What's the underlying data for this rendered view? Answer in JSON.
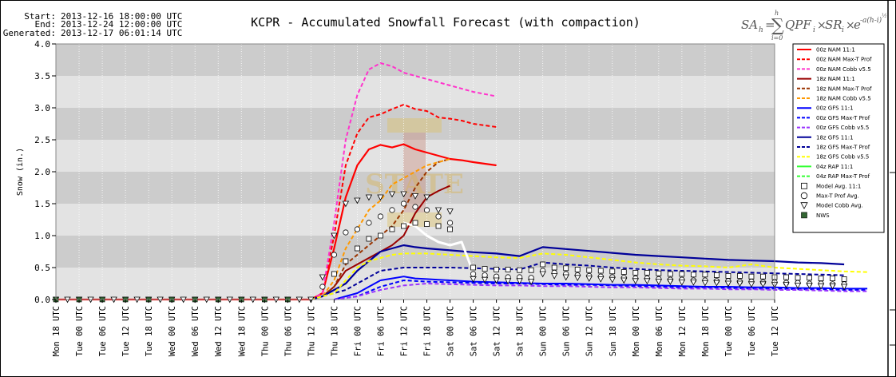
{
  "header": {
    "start_label": "Start:",
    "start_value": "2013-12-16 18:00:00 UTC",
    "end_label": "End:",
    "end_value": "2013-12-24 12:00:00 UTC",
    "generated_label": "Generated:",
    "generated_value": "2013-12-17 06:01:14 UTC",
    "title": "KCPR - Accumulated Snowfall Forecast (with compaction)",
    "formula": {
      "lhs": "SA",
      "lhs_sub": "h",
      "eq": "=",
      "sum_upper": "h",
      "sum_lower": "i=0",
      "body": "QPF",
      "body_sub": "i",
      "times1": "×",
      "sr": "SR",
      "sr_sub": "i",
      "times2": "×",
      "exp_base": "e",
      "exp": "-a(h-i)",
      "exp_sup": "½"
    }
  },
  "watermark": {
    "text": "STATE"
  },
  "colors": {
    "plot_dark": "#cccccc",
    "plot_light": "#e3e3e3",
    "grid": "#ffffff",
    "nam00": "#ff0000",
    "nam00_cobb": "#ff33cc",
    "nam18": "#990000",
    "nam18_maxt": "#993300",
    "nam18_cobb": "#ff9900",
    "gfs00": "#0000ff",
    "gfs00_cobb": "#9933ff",
    "gfs18": "#000099",
    "gfs18_cobb": "#ffff00",
    "rap04": "#33ff33",
    "nws": "#336633"
  },
  "chart_data": {
    "type": "line",
    "ylabel": "Snow (in.)",
    "ylim": [
      0,
      4.0
    ],
    "yticks": [
      "0.0",
      "0.5",
      "1.0",
      "1.5",
      "2.0",
      "2.5",
      "3.0",
      "3.5",
      "4.0"
    ],
    "x_tick_labels": [
      "Mon 18 UTC",
      "Tue 00 UTC",
      "Tue 06 UTC",
      "Tue 12 UTC",
      "Tue 18 UTC",
      "Wed 00 UTC",
      "Wed 06 UTC",
      "Wed 12 UTC",
      "Wed 18 UTC",
      "Thu 00 UTC",
      "Thu 06 UTC",
      "Thu 12 UTC",
      "Thu 18 UTC",
      "Fri 00 UTC",
      "Fri 06 UTC",
      "Fri 12 UTC",
      "Fri 18 UTC",
      "Sat 00 UTC",
      "Sat 06 UTC",
      "Sat 12 UTC",
      "Sat 18 UTC",
      "Sun 00 UTC",
      "Sun 06 UTC",
      "Sun 12 UTC",
      "Sun 18 UTC",
      "Mon 00 UTC",
      "Mon 06 UTC",
      "Mon 12 UTC",
      "Mon 18 UTC",
      "Tue 00 UTC",
      "Tue 06 UTC",
      "Tue 12 UTC"
    ],
    "x_unit": "hours from Mon 18 UTC",
    "legend_position": "right",
    "legend": [
      {
        "name": "00z NAM 11:1",
        "color": "#ff0000",
        "style": "solid"
      },
      {
        "name": "00z NAM Max-T Prof",
        "color": "#ff0000",
        "style": "dash"
      },
      {
        "name": "00z NAM Cobb v5.5",
        "color": "#ff33cc",
        "style": "dash"
      },
      {
        "name": "18z NAM 11:1",
        "color": "#990000",
        "style": "solid"
      },
      {
        "name": "18z NAM Max-T Prof",
        "color": "#993300",
        "style": "dash"
      },
      {
        "name": "18z NAM Cobb v5.5",
        "color": "#ff9900",
        "style": "dash"
      },
      {
        "name": "00z GFS 11:1",
        "color": "#0000ff",
        "style": "solid"
      },
      {
        "name": "00z GFS Max-T Prof",
        "color": "#0000ff",
        "style": "dash"
      },
      {
        "name": "00z GFS Cobb v5.5",
        "color": "#9933ff",
        "style": "dash"
      },
      {
        "name": "18z GFS 11:1",
        "color": "#000099",
        "style": "solid"
      },
      {
        "name": "18z GFS Max-T Prof",
        "color": "#000099",
        "style": "dash"
      },
      {
        "name": "18z GFS Cobb v5.5",
        "color": "#ffff00",
        "style": "dash"
      },
      {
        "name": "04z RAP 11:1",
        "color": "#33ff33",
        "style": "solid"
      },
      {
        "name": "04z RAP Max-T Prof",
        "color": "#33ff33",
        "style": "dash"
      },
      {
        "name": "Model Avg. 11:1",
        "color": "#000000",
        "marker": "square"
      },
      {
        "name": "Max-T Prof Avg.",
        "color": "#000000",
        "marker": "circle"
      },
      {
        "name": "Model Cobb Avg.",
        "color": "#000000",
        "marker": "triangle"
      },
      {
        "name": "NWS",
        "color": "#336633",
        "marker": "filled-square"
      }
    ],
    "series": [
      {
        "name": "00z NAM 11:1",
        "color": "#ff0000",
        "dash": "",
        "width": 2.2,
        "x": [
          0,
          6,
          12,
          18,
          24,
          30,
          36,
          42,
          48,
          54,
          60,
          66,
          69,
          72,
          75,
          78,
          81,
          84,
          87,
          90,
          93,
          96,
          99,
          102,
          105,
          108,
          114
        ],
        "y": [
          0,
          0,
          0,
          0,
          0,
          0,
          0,
          0,
          0,
          0,
          0,
          0,
          0.1,
          0.8,
          1.6,
          2.1,
          2.35,
          2.42,
          2.38,
          2.43,
          2.35,
          2.3,
          2.25,
          2.2,
          2.18,
          2.15,
          2.1
        ]
      },
      {
        "name": "00z NAM Max-T Prof",
        "color": "#ff0000",
        "dash": "5,3",
        "width": 2,
        "x": [
          66,
          69,
          72,
          75,
          78,
          81,
          84,
          87,
          90,
          93,
          96,
          99,
          102,
          105,
          108,
          114
        ],
        "y": [
          0,
          0.1,
          1.0,
          2.1,
          2.6,
          2.85,
          2.9,
          2.98,
          3.05,
          2.98,
          2.95,
          2.85,
          2.83,
          2.8,
          2.75,
          2.7
        ]
      },
      {
        "name": "00z NAM Cobb v5.5",
        "color": "#ff33cc",
        "dash": "5,3",
        "width": 2,
        "x": [
          66,
          69,
          72,
          75,
          78,
          81,
          84,
          87,
          90,
          93,
          96,
          102,
          108,
          114
        ],
        "y": [
          0,
          0.1,
          1.2,
          2.5,
          3.2,
          3.6,
          3.7,
          3.65,
          3.55,
          3.5,
          3.45,
          3.35,
          3.25,
          3.18
        ]
      },
      {
        "name": "18z NAM 11:1",
        "color": "#990000",
        "dash": "",
        "width": 2,
        "x": [
          66,
          69,
          72,
          75,
          78,
          81,
          84,
          87,
          90,
          93,
          96,
          99,
          102
        ],
        "y": [
          0,
          0.05,
          0.2,
          0.45,
          0.55,
          0.65,
          0.75,
          0.85,
          1.0,
          1.35,
          1.6,
          1.7,
          1.78
        ]
      },
      {
        "name": "18z NAM Max-T Prof",
        "color": "#993300",
        "dash": "5,3",
        "width": 2,
        "x": [
          66,
          69,
          72,
          75,
          78,
          81,
          84,
          87,
          90,
          93,
          96,
          99,
          102
        ],
        "y": [
          0,
          0.05,
          0.2,
          0.55,
          0.7,
          0.85,
          1.0,
          1.15,
          1.4,
          1.75,
          2.0,
          2.15,
          2.2
        ]
      },
      {
        "name": "18z NAM Cobb v5.5",
        "color": "#ff9900",
        "dash": "5,3",
        "width": 2,
        "x": [
          66,
          69,
          72,
          75,
          78,
          81,
          84,
          87,
          90,
          93,
          96,
          99,
          102
        ],
        "y": [
          0,
          0.05,
          0.3,
          0.8,
          1.1,
          1.4,
          1.55,
          1.8,
          1.9,
          2.0,
          2.1,
          2.15,
          2.2
        ]
      },
      {
        "name": "00z GFS 11:1",
        "color": "#0000ff",
        "dash": "",
        "width": 2,
        "x": [
          72,
          75,
          78,
          81,
          84,
          87,
          90,
          93,
          96,
          99,
          102,
          108,
          114,
          120,
          126,
          132,
          138,
          144,
          150,
          156,
          162,
          168,
          174,
          180,
          186,
          192,
          198,
          204,
          210
        ],
        "y": [
          0,
          0.05,
          0.1,
          0.2,
          0.3,
          0.33,
          0.36,
          0.33,
          0.32,
          0.31,
          0.3,
          0.28,
          0.27,
          0.26,
          0.25,
          0.25,
          0.24,
          0.23,
          0.23,
          0.22,
          0.21,
          0.2,
          0.2,
          0.19,
          0.19,
          0.18,
          0.18,
          0.17,
          0.17
        ]
      },
      {
        "name": "00z GFS Max-T Prof",
        "color": "#0000ff",
        "dash": "5,3",
        "width": 2,
        "x": [
          72,
          78,
          84,
          87,
          90,
          96,
          102,
          108,
          114,
          120,
          126,
          132,
          138,
          144,
          150,
          156,
          162,
          168,
          174,
          180,
          186,
          192,
          198,
          204,
          210
        ],
        "y": [
          0,
          0.05,
          0.2,
          0.25,
          0.3,
          0.28,
          0.27,
          0.26,
          0.25,
          0.25,
          0.24,
          0.23,
          0.23,
          0.22,
          0.21,
          0.2,
          0.19,
          0.19,
          0.18,
          0.17,
          0.17,
          0.16,
          0.16,
          0.15,
          0.15
        ]
      },
      {
        "name": "00z GFS Cobb v5.5",
        "color": "#9933ff",
        "dash": "5,3",
        "width": 2,
        "x": [
          72,
          78,
          84,
          90,
          96,
          102,
          108,
          114,
          120,
          126,
          132,
          138,
          144,
          150,
          156,
          162,
          168,
          174,
          180,
          186,
          192,
          198,
          204,
          210
        ],
        "y": [
          0,
          0.05,
          0.15,
          0.22,
          0.25,
          0.24,
          0.23,
          0.22,
          0.22,
          0.21,
          0.21,
          0.2,
          0.19,
          0.19,
          0.18,
          0.17,
          0.17,
          0.16,
          0.16,
          0.15,
          0.15,
          0.14,
          0.13,
          0.13
        ]
      },
      {
        "name": "18z GFS 11:1",
        "color": "#000099",
        "dash": "",
        "width": 2.2,
        "x": [
          66,
          69,
          72,
          75,
          78,
          81,
          84,
          87,
          90,
          93,
          96,
          102,
          108,
          114,
          120,
          126,
          132,
          138,
          144,
          150,
          156,
          162,
          168,
          174,
          180,
          186,
          192,
          198,
          204
        ],
        "y": [
          0,
          0.05,
          0.15,
          0.25,
          0.45,
          0.6,
          0.75,
          0.8,
          0.85,
          0.82,
          0.8,
          0.77,
          0.74,
          0.72,
          0.68,
          0.82,
          0.79,
          0.76,
          0.73,
          0.7,
          0.68,
          0.66,
          0.64,
          0.62,
          0.61,
          0.6,
          0.58,
          0.57,
          0.55
        ]
      },
      {
        "name": "18z GFS Max-T Prof",
        "color": "#000099",
        "dash": "5,3",
        "width": 2,
        "x": [
          66,
          69,
          72,
          75,
          78,
          81,
          84,
          90,
          96,
          102,
          108,
          114,
          120,
          126,
          132,
          138,
          144,
          150,
          156,
          162,
          168,
          174,
          180,
          186,
          192,
          198,
          204
        ],
        "y": [
          0,
          0.05,
          0.1,
          0.15,
          0.25,
          0.35,
          0.45,
          0.5,
          0.5,
          0.5,
          0.49,
          0.48,
          0.47,
          0.58,
          0.55,
          0.53,
          0.5,
          0.48,
          0.46,
          0.45,
          0.44,
          0.43,
          0.42,
          0.41,
          0.4,
          0.39,
          0.38
        ]
      },
      {
        "name": "18z GFS Cobb v5.5",
        "color": "#ffff00",
        "dash": "5,3",
        "width": 2,
        "x": [
          66,
          69,
          72,
          75,
          78,
          81,
          84,
          87,
          90,
          96,
          102,
          108,
          114,
          120,
          126,
          132,
          138,
          144,
          150,
          156,
          162,
          168,
          174,
          180,
          186,
          192,
          198,
          204,
          210
        ],
        "y": [
          0,
          0.05,
          0.1,
          0.3,
          0.5,
          0.6,
          0.65,
          0.7,
          0.72,
          0.72,
          0.7,
          0.68,
          0.66,
          0.65,
          0.72,
          0.7,
          0.66,
          0.62,
          0.58,
          0.55,
          0.53,
          0.52,
          0.5,
          0.55,
          0.5,
          0.48,
          0.46,
          0.44,
          0.43
        ]
      },
      {
        "name": "Model spread",
        "color": "#ffffff",
        "dash": "",
        "width": 3,
        "x": [
          90,
          93,
          96,
          99,
          102,
          105,
          108
        ],
        "y": [
          1.2,
          1.15,
          1.0,
          0.9,
          0.85,
          0.9,
          0.42
        ]
      }
    ],
    "markers": [
      {
        "name": "Model Avg. 11:1",
        "shape": "square",
        "x": [
          72,
          75,
          78,
          81,
          84,
          87,
          90,
          93,
          96,
          99,
          102,
          108,
          111,
          114,
          117,
          120,
          123,
          126,
          129,
          132,
          135,
          138,
          141,
          144,
          147,
          150,
          153,
          156,
          159,
          162,
          165,
          168,
          171,
          174,
          177,
          180,
          183,
          186,
          189,
          192,
          195,
          198,
          201,
          204
        ],
        "y": [
          0.4,
          0.6,
          0.8,
          0.95,
          1.0,
          1.1,
          1.15,
          1.2,
          1.18,
          1.15,
          1.1,
          0.5,
          0.48,
          0.47,
          0.47,
          0.46,
          0.46,
          0.55,
          0.5,
          0.49,
          0.47,
          0.46,
          0.45,
          0.44,
          0.43,
          0.42,
          0.42,
          0.41,
          0.4,
          0.4,
          0.39,
          0.39,
          0.38,
          0.37,
          0.37,
          0.36,
          0.36,
          0.35,
          0.35,
          0.34,
          0.34,
          0.33,
          0.33,
          0.32
        ]
      },
      {
        "name": "Max-T Prof Avg.",
        "shape": "circle",
        "x": [
          69,
          72,
          75,
          78,
          81,
          84,
          87,
          90,
          93,
          96,
          99,
          102,
          108,
          111,
          114,
          117,
          120,
          123,
          126,
          129,
          132,
          135,
          138,
          141,
          144,
          147,
          150,
          153,
          156,
          159,
          162,
          165,
          168,
          171,
          174,
          177,
          180,
          183,
          186,
          189,
          192,
          195,
          198,
          201,
          204
        ],
        "y": [
          0.2,
          0.7,
          1.05,
          1.1,
          1.2,
          1.3,
          1.4,
          1.5,
          1.45,
          1.4,
          1.3,
          1.2,
          0.4,
          0.38,
          0.36,
          0.35,
          0.35,
          0.34,
          0.45,
          0.42,
          0.4,
          0.38,
          0.37,
          0.36,
          0.35,
          0.34,
          0.33,
          0.33,
          0.32,
          0.31,
          0.31,
          0.3,
          0.3,
          0.29,
          0.29,
          0.28,
          0.28,
          0.27,
          0.27,
          0.26,
          0.26,
          0.25,
          0.25,
          0.24,
          0.24
        ]
      },
      {
        "name": "Model Cobb Avg.",
        "shape": "triangle",
        "x": [
          0,
          3,
          6,
          9,
          12,
          15,
          18,
          21,
          24,
          27,
          30,
          33,
          36,
          39,
          42,
          45,
          48,
          51,
          54,
          57,
          60,
          63,
          66,
          69,
          72,
          75,
          78,
          81,
          84,
          87,
          90,
          93,
          96,
          99,
          102,
          108,
          111,
          114,
          117,
          120,
          123,
          126,
          129,
          132,
          135,
          138,
          141,
          144,
          147,
          150,
          153,
          156,
          159,
          162,
          165,
          168,
          171,
          174,
          177,
          180,
          183,
          186,
          189,
          192,
          195,
          198,
          201,
          204
        ],
        "y": [
          0,
          0,
          0,
          0,
          0,
          0,
          0,
          0,
          0,
          0,
          0,
          0,
          0,
          0,
          0,
          0,
          0,
          0,
          0,
          0,
          0,
          0,
          0,
          0.35,
          1.0,
          1.5,
          1.55,
          1.6,
          1.6,
          1.65,
          1.65,
          1.62,
          1.6,
          1.4,
          1.38,
          0.32,
          0.31,
          0.3,
          0.29,
          0.29,
          0.28,
          0.4,
          0.37,
          0.35,
          0.34,
          0.33,
          0.32,
          0.31,
          0.3,
          0.29,
          0.29,
          0.28,
          0.28,
          0.27,
          0.27,
          0.26,
          0.26,
          0.25,
          0.25,
          0.24,
          0.24,
          0.23,
          0.23,
          0.22,
          0.22,
          0.21,
          0.21,
          0.2
        ]
      },
      {
        "name": "NWS",
        "shape": "filled-square",
        "x": [
          0,
          6,
          12,
          18,
          24,
          30,
          36,
          42,
          48,
          54,
          60
        ],
        "y": [
          0,
          0,
          0,
          0,
          0,
          0,
          0,
          0,
          0,
          0,
          0
        ]
      }
    ]
  }
}
